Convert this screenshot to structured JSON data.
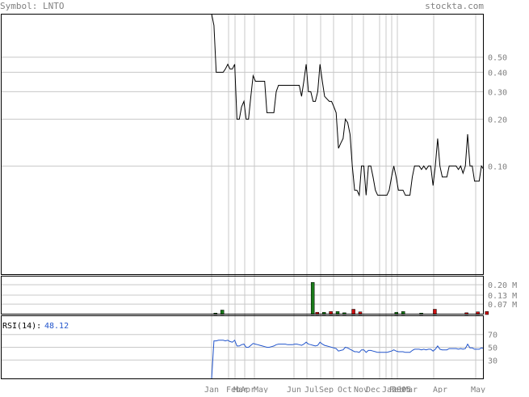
{
  "header": {
    "symbol_label": "Symbol: LNTO",
    "site": "stockta.com"
  },
  "colors": {
    "price_line": "#000000",
    "volume_up": "#1a7a1a",
    "volume_down": "#cc1111",
    "rsi_line": "#2255cc",
    "grid": "#c8c8c8",
    "frame": "#000000",
    "text": "#808080"
  },
  "chart_data": [
    {
      "type": "line",
      "panel": "price",
      "scale": "log",
      "y_ticks": [
        0.5,
        0.4,
        0.3,
        0.2,
        0.1
      ],
      "y_tick_labels": [
        "0.50",
        "0.40",
        "0.30",
        "0.20",
        "0.10"
      ],
      "ylim": [
        0.02,
        0.95
      ],
      "x_tick_labels": [
        "Jan",
        "Feb",
        "Mar",
        "Apr",
        "May",
        "Jun",
        "Jul",
        "Sep",
        "Oct",
        "Nov",
        "Dec",
        "Jan",
        "Feb",
        "2005",
        "Mar",
        "Apr",
        "May"
      ],
      "grid": true,
      "series": [
        {
          "values": [
            0.95,
            0.8,
            0.4,
            0.4,
            0.4,
            0.4,
            0.42,
            0.45,
            0.42,
            0.42,
            0.45,
            0.2,
            0.2,
            0.24,
            0.26,
            0.2,
            0.2,
            0.28,
            0.38,
            0.35,
            0.35,
            0.35,
            0.35,
            0.35,
            0.22,
            0.22,
            0.22,
            0.22,
            0.3,
            0.33,
            0.33,
            0.33,
            0.33,
            0.33,
            0.33,
            0.33,
            0.33,
            0.33,
            0.33,
            0.28,
            0.35,
            0.45,
            0.3,
            0.3,
            0.26,
            0.26,
            0.3,
            0.45,
            0.35,
            0.28,
            0.27,
            0.26,
            0.26,
            0.24,
            0.22,
            0.13,
            0.14,
            0.15,
            0.2,
            0.19,
            0.16,
            0.1,
            0.07,
            0.07,
            0.065,
            0.1,
            0.1,
            0.065,
            0.1,
            0.1,
            0.085,
            0.07,
            0.065,
            0.065,
            0.065,
            0.065,
            0.065,
            0.07,
            0.085,
            0.1,
            0.085,
            0.07,
            0.07,
            0.07,
            0.065,
            0.065,
            0.065,
            0.085,
            0.1,
            0.1,
            0.1,
            0.095,
            0.1,
            0.095,
            0.1,
            0.1,
            0.075,
            0.1,
            0.15,
            0.1,
            0.085,
            0.085,
            0.085,
            0.1,
            0.1,
            0.1,
            0.1,
            0.095,
            0.1,
            0.09,
            0.1,
            0.16,
            0.1,
            0.1,
            0.08,
            0.08,
            0.08,
            0.1,
            0.095
          ]
        }
      ]
    },
    {
      "type": "bar",
      "panel": "volume",
      "y_ticks": [
        0.2,
        0.13,
        0.07
      ],
      "y_tick_labels": [
        "0.20 M",
        "0.13 M",
        "0.07 M"
      ],
      "ylim": [
        0,
        0.26
      ],
      "grid": true,
      "series": [
        {
          "name": "up",
          "bars": [
            [
              0.5,
              0.01
            ],
            [
              2,
              0.03
            ],
            [
              22,
              0.215
            ],
            [
              24.5,
              0.015
            ],
            [
              27.5,
              0.02
            ],
            [
              29,
              0.012
            ],
            [
              40.5,
              0.015
            ],
            [
              42,
              0.02
            ],
            [
              46,
              0.01
            ]
          ]
        },
        {
          "name": "down",
          "bars": [
            [
              23,
              0.015
            ],
            [
              26,
              0.02
            ],
            [
              31,
              0.035
            ],
            [
              32.5,
              0.018
            ],
            [
              49,
              0.035
            ],
            [
              56,
              0.012
            ],
            [
              58.5,
              0.018
            ],
            [
              60.5,
              0.02
            ]
          ]
        }
      ]
    },
    {
      "type": "line",
      "panel": "rsi",
      "title": "RSI(14):",
      "current_value": "48.12",
      "y_ticks": [
        70,
        50,
        30
      ],
      "y_tick_labels": [
        "70",
        "50",
        "30"
      ],
      "ylim": [
        0,
        100
      ],
      "grid": true,
      "series": [
        {
          "values": [
            0,
            60,
            60,
            61,
            61,
            61,
            60,
            61,
            59,
            58,
            61,
            52,
            52,
            54,
            55,
            50,
            50,
            53,
            56,
            55,
            54,
            53,
            52,
            51,
            50,
            50,
            51,
            52,
            54,
            55,
            55,
            55,
            55,
            54,
            54,
            54,
            55,
            55,
            54,
            53,
            55,
            58,
            55,
            54,
            53,
            52,
            53,
            58,
            55,
            53,
            52,
            51,
            50,
            49,
            48,
            44,
            45,
            46,
            50,
            49,
            47,
            45,
            43,
            43,
            42,
            46,
            46,
            42,
            45,
            45,
            44,
            43,
            42,
            42,
            42,
            42,
            42,
            43,
            44,
            46,
            44,
            43,
            43,
            43,
            42,
            42,
            42,
            45,
            47,
            47,
            47,
            46,
            47,
            46,
            47,
            47,
            44,
            47,
            52,
            47,
            46,
            46,
            46,
            48,
            48,
            48,
            48,
            47,
            48,
            47,
            48,
            55,
            49,
            49,
            47,
            47,
            47,
            49,
            48
          ]
        }
      ]
    }
  ]
}
